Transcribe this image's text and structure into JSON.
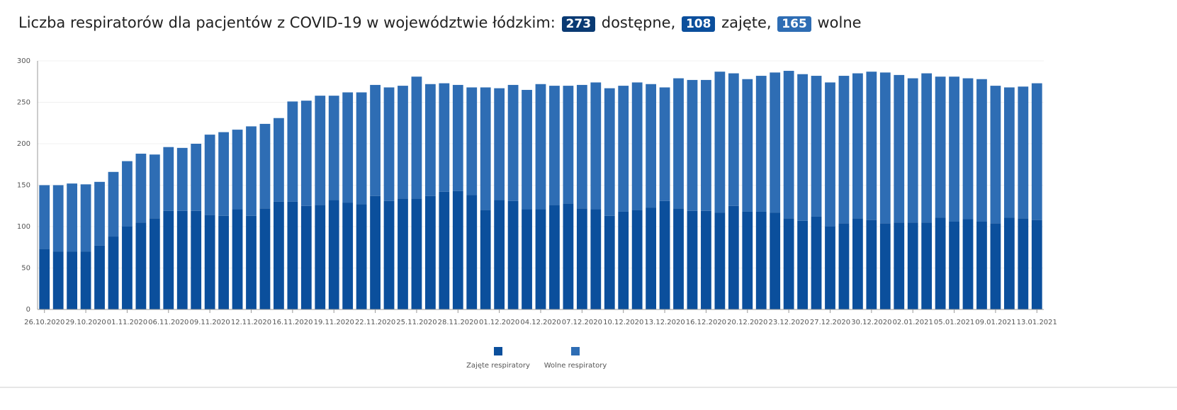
{
  "header": {
    "title": "Liczba respiratorów dla pacjentów z COVID-19 w województwie łódzkim:",
    "available": 273,
    "available_label": "dostępne,",
    "occupied": 108,
    "occupied_label": "zajęte,",
    "free": 165,
    "free_label": "wolne"
  },
  "chart_data": {
    "type": "stacked_bar",
    "categories": [
      "26.10.2020",
      null,
      null,
      "29.10.2020",
      null,
      null,
      "01.11.2020",
      null,
      null,
      "06.11.2020",
      null,
      null,
      "09.11.2020",
      null,
      null,
      "12.11.2020",
      null,
      null,
      "16.11.2020",
      null,
      null,
      "19.11.2020",
      null,
      null,
      "22.11.2020",
      null,
      null,
      "25.11.2020",
      null,
      null,
      "28.11.2020",
      null,
      null,
      "01.12.2020",
      null,
      null,
      "04.12.2020",
      null,
      null,
      "07.12.2020",
      null,
      null,
      "10.12.2020",
      null,
      null,
      "13.12.2020",
      null,
      null,
      "16.12.2020",
      null,
      null,
      "20.12.2020",
      null,
      null,
      "23.12.2020",
      null,
      null,
      "27.12.2020",
      null,
      null,
      "30.12.2020",
      null,
      null,
      "02.01.2021",
      null,
      null,
      "05.01.2021",
      null,
      null,
      "09.01.2021",
      null,
      null,
      "13.01.2021"
    ],
    "series": [
      {
        "name": "Zajęte respiratory",
        "color": "#0b4f9c",
        "values": [
          73,
          70,
          70,
          70,
          77,
          88,
          100,
          105,
          110,
          119,
          119,
          119,
          114,
          113,
          121,
          113,
          122,
          130,
          130,
          125,
          126,
          132,
          129,
          127,
          137,
          131,
          134,
          134,
          137,
          142,
          143,
          138,
          120,
          132,
          131,
          121,
          121,
          126,
          128,
          122,
          121,
          113,
          118,
          120,
          123,
          131,
          122,
          119,
          119,
          117,
          125,
          118,
          118,
          117,
          110,
          107,
          112,
          100,
          104,
          110,
          108,
          104,
          105,
          105,
          105,
          111,
          106,
          109,
          106,
          104,
          111,
          110,
          108
        ]
      },
      {
        "name": "Wolne respiratory",
        "color": "#2e6db4",
        "values": [
          77,
          80,
          82,
          81,
          77,
          78,
          79,
          83,
          77,
          77,
          76,
          81,
          97,
          101,
          96,
          108,
          102,
          101,
          121,
          127,
          132,
          126,
          133,
          135,
          134,
          137,
          136,
          147,
          135,
          131,
          128,
          130,
          148,
          135,
          140,
          144,
          151,
          144,
          142,
          149,
          153,
          154,
          152,
          154,
          149,
          137,
          157,
          158,
          158,
          170,
          160,
          160,
          164,
          169,
          178,
          177,
          170,
          174,
          178,
          175,
          179,
          182,
          178,
          174,
          180,
          170,
          175,
          170,
          172,
          166,
          157,
          159,
          165
        ]
      }
    ],
    "ylim": [
      0,
      300
    ],
    "yticks": [
      0,
      50,
      100,
      150,
      200,
      250,
      300
    ],
    "grid": true,
    "legend": "bottom"
  }
}
